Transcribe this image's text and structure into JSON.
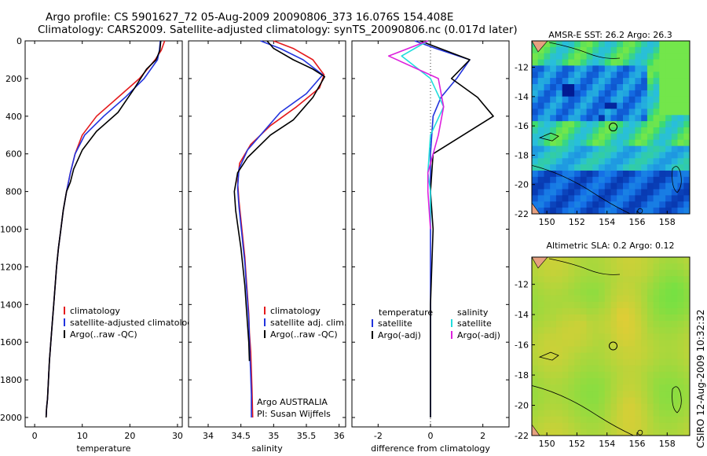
{
  "header": {
    "line1": "Argo profile: CS 5901627_72 05-Aug-2009 20090806_373 16.076S 154.408E",
    "line2": "Climatology: CARS2009. Satellite-adjusted climatology: synTS_20090806.nc (0.017d later)"
  },
  "side_label": "CSIRO 12-Aug-2009 10:32:32",
  "colors": {
    "red": "#e41a1c",
    "blue": "#2233dd",
    "black": "#000000",
    "cyan": "#22dddd",
    "magenta": "#dd22dd"
  },
  "chart_data": [
    {
      "type": "line",
      "id": "temperature",
      "xlabel": "temperature",
      "ylabel": "",
      "xlim": [
        -2,
        31
      ],
      "ylim": [
        2050,
        0
      ],
      "xticks": [
        0,
        10,
        20,
        30
      ],
      "yticks": [
        0,
        200,
        400,
        600,
        800,
        1000,
        1200,
        1400,
        1600,
        1800,
        2000
      ],
      "legend": {
        "position": "bottom-left",
        "entries": [
          "climatology",
          "satellite-adjusted climatology",
          "Argo(..raw -QC)"
        ]
      },
      "series": [
        {
          "name": "climatology",
          "color": "red",
          "x": [
            27.3,
            26.6,
            25.3,
            22.0,
            17.5,
            13.0,
            10.0,
            8.5,
            7.5,
            6.7,
            6.0,
            5.5,
            5.0,
            4.6,
            4.3,
            4.0,
            3.7,
            3.4,
            3.1,
            2.9,
            2.7,
            2.5,
            2.4
          ],
          "y": [
            0,
            50,
            100,
            200,
            300,
            400,
            500,
            600,
            700,
            800,
            900,
            1000,
            1100,
            1200,
            1300,
            1400,
            1500,
            1600,
            1700,
            1800,
            1900,
            1950,
            2000
          ]
        },
        {
          "name": "satellite-adjusted climatology",
          "color": "blue",
          "x": [
            26.4,
            26.2,
            25.8,
            23.0,
            19.0,
            14.5,
            10.5,
            8.5,
            7.5,
            6.7,
            6.0,
            5.5,
            5.0,
            4.6,
            4.3,
            4.0,
            3.7,
            3.4,
            3.1,
            2.9,
            2.7,
            2.5,
            2.4
          ],
          "y": [
            0,
            50,
            100,
            200,
            300,
            400,
            500,
            600,
            700,
            800,
            900,
            1000,
            1100,
            1200,
            1300,
            1400,
            1500,
            1600,
            1700,
            1800,
            1900,
            1950,
            2000
          ]
        },
        {
          "name": "Argo(..raw -QC)",
          "color": "black",
          "x": [
            26.5,
            26.3,
            25.5,
            23.5,
            21.0,
            17.5,
            13.0,
            10.0,
            8.2,
            7.5,
            6.7,
            6.0,
            5.5,
            5.0,
            4.6,
            4.3,
            4.0,
            3.7,
            3.4,
            3.1,
            2.9,
            2.7,
            2.5,
            2.4
          ],
          "y": [
            0,
            50,
            100,
            150,
            250,
            380,
            480,
            580,
            680,
            750,
            800,
            900,
            1000,
            1100,
            1200,
            1300,
            1400,
            1500,
            1600,
            1700,
            1800,
            1900,
            1950,
            2000
          ]
        }
      ]
    },
    {
      "type": "line",
      "id": "salinity",
      "xlabel": "salinity",
      "xlim": [
        33.7,
        36.1
      ],
      "ylim": [
        2050,
        0
      ],
      "xticks": [
        34,
        34.5,
        35,
        35.5,
        36
      ],
      "legend": {
        "position": "bottom-left",
        "entries": [
          "climatology",
          "satellite adj. clim.",
          "Argo(..raw -QC)"
        ]
      },
      "annotation": [
        "Argo AUSTRALIA",
        "PI: Susan Wijffels"
      ],
      "series": [
        {
          "name": "climatology",
          "color": "red",
          "x": [
            35.0,
            35.3,
            35.6,
            35.77,
            35.7,
            35.35,
            34.95,
            34.65,
            34.48,
            34.45,
            34.47,
            34.5,
            34.53,
            34.56,
            34.58,
            34.6,
            34.62,
            34.63,
            34.65,
            34.66,
            34.67,
            34.68
          ],
          "y": [
            0,
            40,
            100,
            180,
            250,
            350,
            450,
            550,
            650,
            750,
            850,
            950,
            1050,
            1150,
            1250,
            1350,
            1450,
            1550,
            1650,
            1750,
            1850,
            2000
          ]
        },
        {
          "name": "satellite adj. clim.",
          "color": "blue",
          "x": [
            34.8,
            35.1,
            35.45,
            35.75,
            35.5,
            35.1,
            34.85,
            34.6,
            34.47,
            34.45,
            34.47,
            34.5,
            34.53,
            34.56,
            34.58,
            34.6,
            34.62,
            34.63,
            34.64,
            34.65,
            34.66,
            34.66
          ],
          "y": [
            0,
            40,
            100,
            180,
            280,
            380,
            480,
            580,
            680,
            780,
            880,
            980,
            1080,
            1180,
            1280,
            1380,
            1480,
            1580,
            1680,
            1780,
            1880,
            2000
          ]
        },
        {
          "name": "Argo(..raw -QC)",
          "color": "black",
          "x": [
            34.9,
            35.0,
            35.3,
            35.6,
            35.78,
            35.6,
            35.3,
            34.95,
            34.6,
            34.45,
            34.4,
            34.42,
            34.46,
            34.5,
            34.53,
            34.56,
            34.58,
            34.6,
            34.62,
            34.63
          ],
          "y": [
            0,
            40,
            100,
            150,
            190,
            300,
            420,
            500,
            620,
            700,
            800,
            900,
            1000,
            1100,
            1200,
            1300,
            1400,
            1500,
            1600,
            1700
          ]
        }
      ]
    },
    {
      "type": "line",
      "id": "difference",
      "xlabel": "difference from climatology",
      "xlim": [
        -3,
        3
      ],
      "ylim": [
        2050,
        0
      ],
      "xticks": [
        -2,
        0,
        2
      ],
      "legend": {
        "position": "bottom",
        "entries": [
          "temperature",
          "satellite",
          "Argo(-adj)",
          "salinity",
          "satellite",
          "Argo(-adj)"
        ]
      },
      "series": [
        {
          "name": "temperature satellite",
          "color": "blue",
          "x": [
            -0.6,
            0.2,
            1.5,
            1.0,
            0.4,
            0.1,
            0.0,
            0.0,
            0.0,
            0.0,
            0.0,
            0.0
          ],
          "y": [
            0,
            40,
            100,
            200,
            300,
            400,
            600,
            800,
            1000,
            1400,
            1800,
            2000
          ]
        },
        {
          "name": "temperature Argo(-adj)",
          "color": "black",
          "x": [
            -0.4,
            1.5,
            0.8,
            1.8,
            2.4,
            0.1,
            0.0,
            0.1,
            0.0,
            0.0,
            0.0
          ],
          "y": [
            0,
            100,
            200,
            300,
            400,
            600,
            800,
            1000,
            1400,
            1800,
            2000
          ]
        },
        {
          "name": "salinity satellite",
          "color": "cyan",
          "x": [
            -0.1,
            -1.1,
            0.0,
            0.5,
            0.0,
            -0.1,
            0.0,
            0.0
          ],
          "y": [
            0,
            80,
            200,
            350,
            500,
            700,
            800,
            1000
          ]
        },
        {
          "name": "salinity Argo(-adj)",
          "color": "magenta",
          "x": [
            -0.1,
            -1.6,
            0.3,
            0.5,
            0.3,
            -0.1,
            -0.1,
            0.0
          ],
          "y": [
            0,
            80,
            200,
            350,
            500,
            700,
            800,
            1000
          ]
        }
      ]
    },
    {
      "type": "heatmap",
      "id": "sst_map",
      "title": "AMSR-E SST: 26.2 Argo: 26.3",
      "xlim": [
        149,
        159.5
      ],
      "ylim": [
        -22,
        -10.2
      ],
      "xticks": [
        150,
        152,
        154,
        156,
        158
      ],
      "yticks": [
        -12,
        -14,
        -16,
        -18,
        -20,
        -22
      ],
      "argo_position": {
        "lon": 154.408,
        "lat": -16.076
      }
    },
    {
      "type": "heatmap",
      "id": "sla_map",
      "title": "Altimetric SLA: 0.2 Argo: 0.12",
      "xlim": [
        149,
        159.5
      ],
      "ylim": [
        -22,
        -10.2
      ],
      "xticks": [
        150,
        152,
        154,
        156,
        158
      ],
      "yticks": [
        -12,
        -14,
        -16,
        -18,
        -20,
        -22
      ],
      "argo_position": {
        "lon": 154.408,
        "lat": -16.076
      }
    }
  ]
}
